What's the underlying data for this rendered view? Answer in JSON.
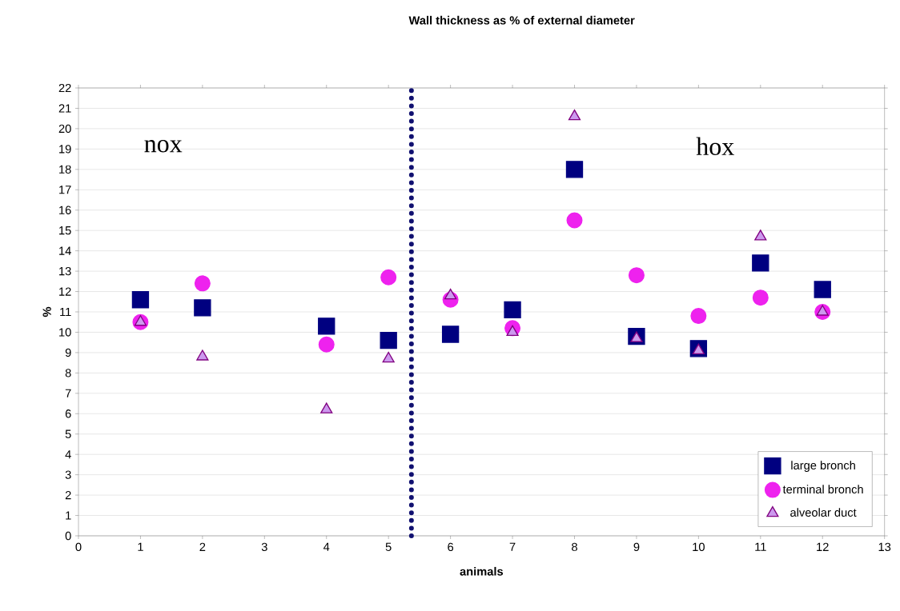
{
  "chart_data": {
    "type": "scatter",
    "title": "Wall thickness as % of external diameter",
    "xlabel": "animals",
    "ylabel": "%",
    "xlim": [
      0,
      13
    ],
    "xticks": [
      0,
      1,
      2,
      3,
      4,
      5,
      6,
      7,
      8,
      9,
      10,
      11,
      12,
      13
    ],
    "ylim": [
      0,
      22
    ],
    "yticks": [
      0,
      1,
      2,
      3,
      4,
      5,
      6,
      7,
      8,
      9,
      10,
      11,
      12,
      13,
      14,
      15,
      16,
      17,
      18,
      19,
      20,
      21,
      22
    ],
    "grid": "y",
    "legend": "bottom right",
    "annotations": [
      "nox",
      "hox"
    ],
    "ref_lines": [
      {
        "axis": "x",
        "value": 5.37,
        "color": "#101070",
        "line_style": "dotted"
      }
    ],
    "series": [
      {
        "name": "large bronch",
        "color": "#000080",
        "marker": "square",
        "x": [
          1,
          2,
          4,
          5,
          6,
          7,
          8,
          9,
          10,
          11,
          12
        ],
        "values": [
          11.6,
          11.2,
          10.3,
          9.6,
          9.9,
          11.1,
          18.0,
          9.8,
          9.2,
          13.4,
          12.1
        ]
      },
      {
        "name": "terminal bronch",
        "color": "#ee22ee",
        "marker": "circle",
        "x": [
          1,
          2,
          4,
          5,
          6,
          7,
          8,
          9,
          10,
          11,
          12
        ],
        "values": [
          10.5,
          12.4,
          9.4,
          12.7,
          11.6,
          10.2,
          15.5,
          12.8,
          10.8,
          11.7,
          11.0
        ]
      },
      {
        "name": "alveolar duct",
        "color": "#cc99ee",
        "marker": "triangle",
        "x": [
          1,
          2,
          4,
          5,
          6,
          7,
          8,
          9,
          10,
          11,
          12
        ],
        "values": [
          10.5,
          8.8,
          6.2,
          8.7,
          11.8,
          10.0,
          20.6,
          9.7,
          9.1,
          14.7,
          11.0
        ]
      }
    ]
  }
}
